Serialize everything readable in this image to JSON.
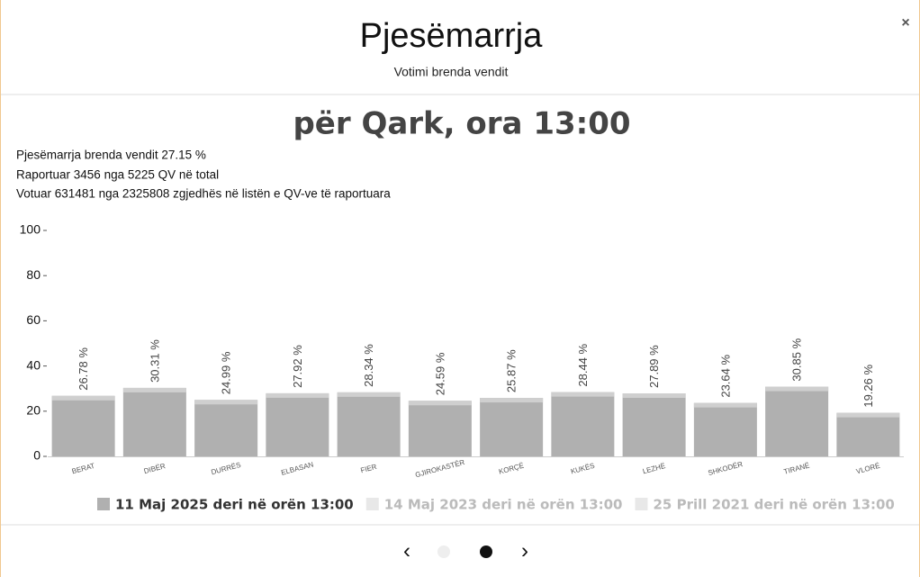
{
  "modal": {
    "title": "Pjesëmarrja",
    "subtitle": "Votimi brenda vendit",
    "close": "×"
  },
  "info": [
    "Pjesëmarrja brenda vendit 27.15 %",
    "Raportuar 3456 nga 5225 QV në total",
    "Votuar 631481 nga 2325808 zgjedhës në listën e QV-ve të raportuara"
  ],
  "chart_data": {
    "type": "bar",
    "title": "për Qark, ora 13:00",
    "categories": [
      "BERAT",
      "DIBËR",
      "DURRËS",
      "ELBASAN",
      "FIER",
      "GJIROKASTËR",
      "KORÇË",
      "KUKËS",
      "LEZHË",
      "SHKODËR",
      "TIRANË",
      "VLORË"
    ],
    "series": [
      {
        "name": "11 Maj 2025 deri në orën 13:00",
        "color": "#b0b0b0",
        "values": [
          26.78,
          30.31,
          24.99,
          27.92,
          28.34,
          24.59,
          25.87,
          28.44,
          27.89,
          23.64,
          30.85,
          19.26
        ],
        "value_labels": [
          "26.78 %",
          "30.31 %",
          "24.99 %",
          "27.92 %",
          "28.34 %",
          "24.59 %",
          "25.87 %",
          "28.44 %",
          "27.89 %",
          "23.64 %",
          "30.85 %",
          "19.26 %"
        ]
      },
      {
        "name": "14 Maj 2023 deri në orën 13:00",
        "color": "#e8e8e8",
        "visible": false
      },
      {
        "name": "25 Prill 2021 deri në orën 13:00",
        "color": "#e8e8e8",
        "visible": false
      }
    ],
    "ylim": [
      0,
      100
    ],
    "yticks": [
      0,
      20,
      40,
      60,
      80,
      100
    ],
    "grid": false
  },
  "nav": {
    "prev": "‹",
    "next": "›"
  }
}
